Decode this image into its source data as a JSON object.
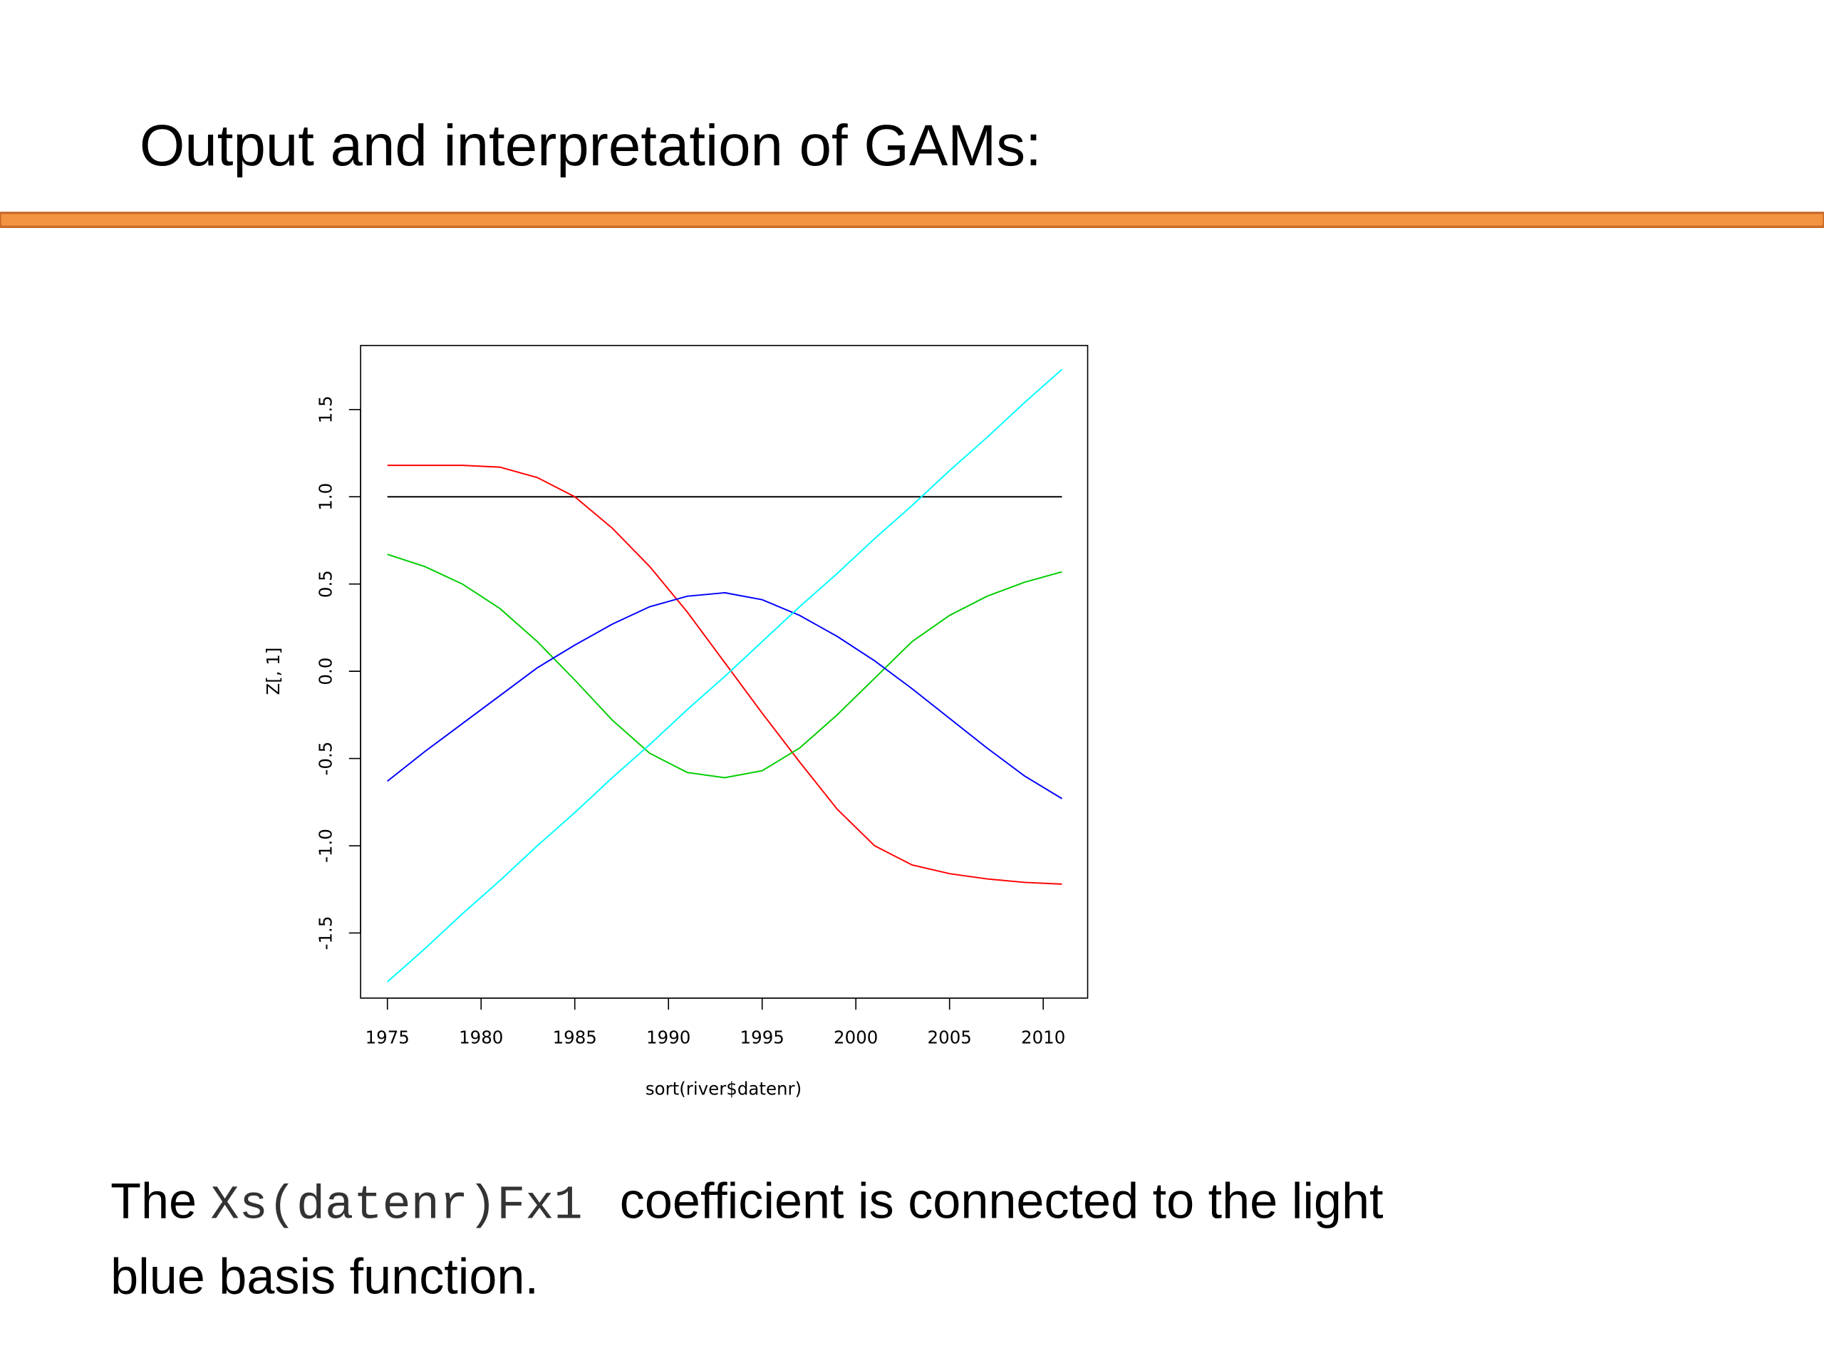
{
  "slide": {
    "title": "Output and interpretation of GAMs:",
    "body": {
      "before": "The ",
      "code": "Xs(datenr)Fx1",
      "after_line1": " coefficient is connected to the light",
      "after_line2": "blue basis function."
    }
  },
  "chart_data": {
    "type": "line",
    "xlabel": "sort(river$datenr)",
    "ylabel": "Z[, 1]",
    "x": [
      1975,
      1977,
      1979,
      1981,
      1983,
      1985,
      1987,
      1989,
      1991,
      1993,
      1995,
      1997,
      1999,
      2001,
      2003,
      2005,
      2007,
      2009,
      2011
    ],
    "series": [
      {
        "color": "#000000",
        "values": [
          1,
          1,
          1,
          1,
          1,
          1,
          1,
          1,
          1,
          1,
          1,
          1,
          1,
          1,
          1,
          1,
          1,
          1,
          1
        ]
      },
      {
        "color": "#ff0000",
        "values": [
          1.18,
          1.18,
          1.18,
          1.17,
          1.11,
          1.0,
          0.82,
          0.6,
          0.34,
          0.05,
          -0.24,
          -0.52,
          -0.79,
          -1.0,
          -1.11,
          -1.16,
          -1.19,
          -1.21,
          -1.22
        ]
      },
      {
        "color": "#00cd00",
        "values": [
          0.67,
          0.6,
          0.5,
          0.36,
          0.17,
          -0.05,
          -0.28,
          -0.47,
          -0.58,
          -0.61,
          -0.57,
          -0.44,
          -0.25,
          -0.04,
          0.17,
          0.32,
          0.43,
          0.51,
          0.57
        ]
      },
      {
        "color": "#0000ff",
        "values": [
          -0.63,
          -0.46,
          -0.3,
          -0.14,
          0.02,
          0.15,
          0.27,
          0.37,
          0.43,
          0.45,
          0.41,
          0.32,
          0.2,
          0.06,
          -0.1,
          -0.27,
          -0.44,
          -0.6,
          -0.73
        ]
      },
      {
        "color": "#00ffff",
        "values": [
          -1.78,
          -1.59,
          -1.39,
          -1.2,
          -1.0,
          -0.81,
          -0.61,
          -0.42,
          -0.22,
          -0.03,
          0.17,
          0.37,
          0.56,
          0.76,
          0.95,
          1.15,
          1.34,
          1.54,
          1.73
        ]
      }
    ],
    "xlim": [
      1973.57,
      2012.37
    ],
    "ylim": [
      -1.873,
      1.867
    ],
    "xticks": [
      1975,
      1980,
      1985,
      1990,
      1995,
      2000,
      2005,
      2010
    ],
    "yticks": [
      -1.5,
      {
        "value": -1,
        "label": "-1.0"
      },
      -0.5,
      {
        "value": 0,
        "label": "0.0"
      },
      0.5,
      {
        "value": 1,
        "label": "1.0"
      },
      1.5
    ]
  }
}
